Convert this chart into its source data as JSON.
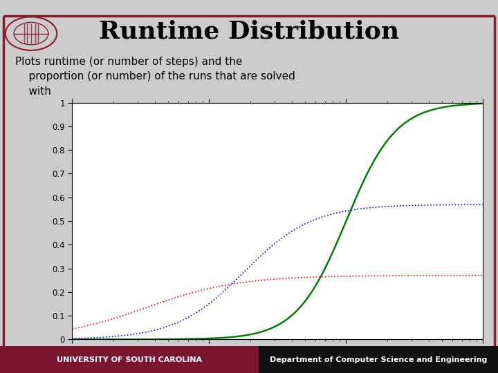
{
  "title": "Runtime Distribution",
  "subtitle_line1": "Plots runtime (or number of steps) and the",
  "subtitle_line2": "    proportion (or number) of the runs that are solved",
  "subtitle_line3": "    with",
  "background_color": "#cccccc",
  "border_color": "#8b1a2a",
  "title_color": "#000000",
  "text_color": "#000000",
  "plot_bg": "#ffffff",
  "green_plateau": 1.0,
  "blue_plateau": 0.57,
  "red_plateau": 0.27,
  "green_midpoint": 100,
  "blue_midpoint": 18,
  "red_midpoint": 3.5,
  "green_steepness": 5.5,
  "blue_steepness": 4.0,
  "red_steepness": 3.0,
  "xmin": 1,
  "xmax": 1000,
  "ymin": 0,
  "ymax": 1,
  "yticks": [
    0,
    0.1,
    0.2,
    0.3,
    0.4,
    0.5,
    0.6,
    0.7,
    0.8,
    0.9,
    1
  ],
  "footer_left_bg": "#7a1530",
  "footer_right_bg": "#111111",
  "footer_left_text": "UNIVERSITY OF SOUTH CAROLINA",
  "footer_right_text": "Department of Computer Science and Engineering"
}
